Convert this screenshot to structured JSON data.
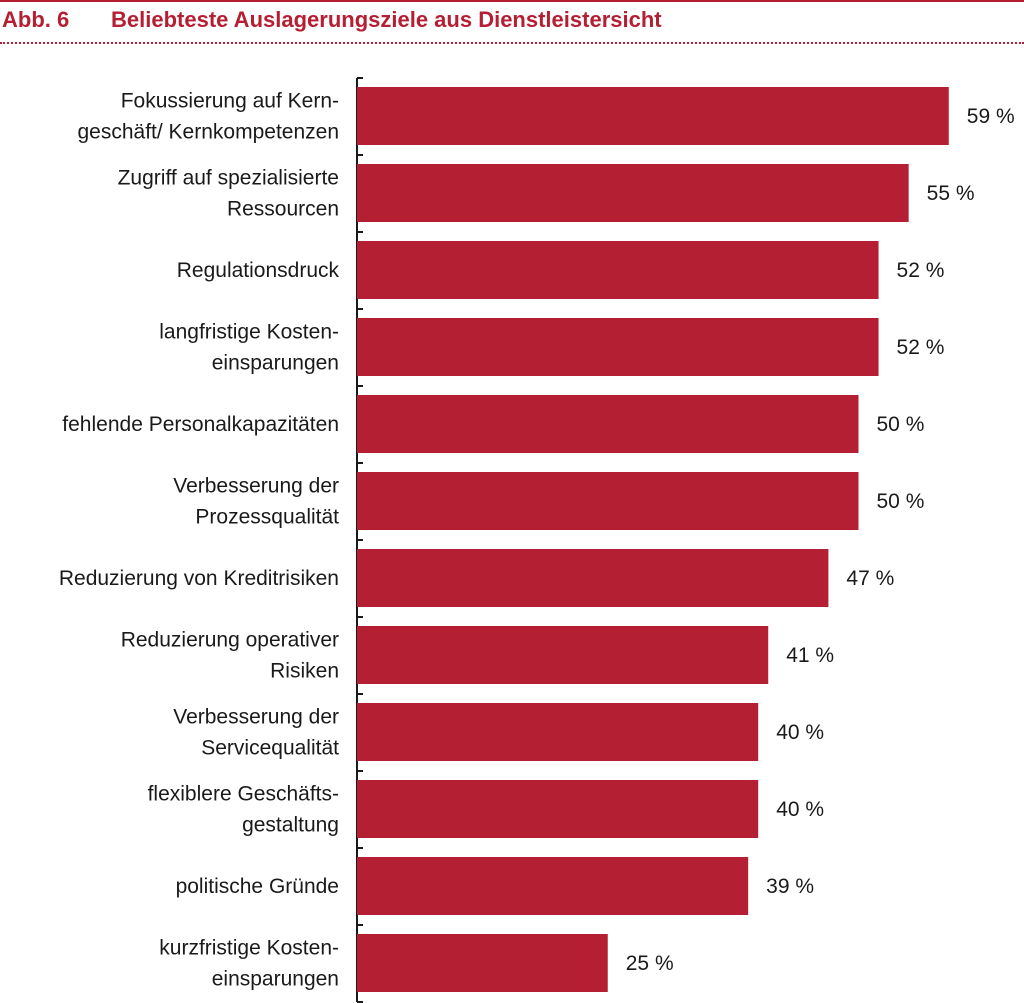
{
  "figure": {
    "number": "Abb. 6",
    "title": "Beliebteste Auslagerungsziele aus Dienstleistersicht"
  },
  "colors": {
    "accent": "#b51f33",
    "bar": "#b51f33",
    "text": "#1a1a1a"
  },
  "chart_data": {
    "type": "bar",
    "orientation": "horizontal",
    "categories": [
      [
        "Fokussierung auf Kern-",
        "geschäft/ Kernkompetenzen"
      ],
      [
        "Zugriff auf spezialisierte",
        "Ressourcen"
      ],
      [
        "Regulationsdruck"
      ],
      [
        "langfristige Kosten-",
        "einsparungen"
      ],
      [
        "fehlende Personalkapazitäten"
      ],
      [
        "Verbesserung der",
        "Prozessqualität"
      ],
      [
        "Reduzierung von Kreditrisiken"
      ],
      [
        "Reduzierung operativer",
        "Risiken"
      ],
      [
        "Verbesserung der",
        "Servicequalität"
      ],
      [
        "flexiblere Geschäfts-",
        "gestaltung"
      ],
      [
        "politische Gründe"
      ],
      [
        "kurzfristige Kosten-",
        "einsparungen"
      ]
    ],
    "values": [
      59,
      55,
      52,
      52,
      50,
      50,
      47,
      41,
      40,
      40,
      39,
      25
    ],
    "value_labels": [
      "59 %",
      "55 %",
      "52 %",
      "52 %",
      "50 %",
      "50 %",
      "47 %",
      "41 %",
      "40 %",
      "40 %",
      "39 %",
      "25 %"
    ],
    "unit": "%",
    "xlim": [
      0,
      60
    ],
    "grid": false,
    "legend": "none"
  }
}
